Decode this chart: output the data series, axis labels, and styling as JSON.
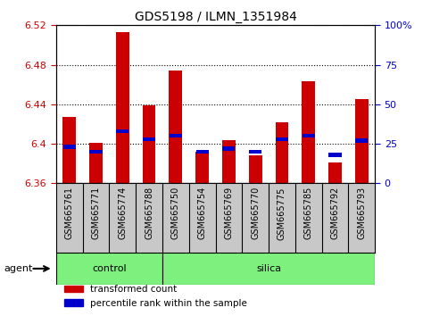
{
  "title": "GDS5198 / ILMN_1351984",
  "samples": [
    "GSM665761",
    "GSM665771",
    "GSM665774",
    "GSM665788",
    "GSM665750",
    "GSM665754",
    "GSM665769",
    "GSM665770",
    "GSM665775",
    "GSM665785",
    "GSM665792",
    "GSM665793"
  ],
  "groups": [
    "control",
    "control",
    "control",
    "control",
    "silica",
    "silica",
    "silica",
    "silica",
    "silica",
    "silica",
    "silica",
    "silica"
  ],
  "transformed_count": [
    6.427,
    6.401,
    6.513,
    6.439,
    6.474,
    6.392,
    6.404,
    6.388,
    6.422,
    6.463,
    6.381,
    6.445
  ],
  "percentile_rank": [
    23,
    20,
    33,
    28,
    30,
    20,
    22,
    20,
    28,
    30,
    18,
    27
  ],
  "ylim_left": [
    6.36,
    6.52
  ],
  "ylim_right": [
    0,
    100
  ],
  "yticks_left": [
    6.36,
    6.4,
    6.44,
    6.48,
    6.52
  ],
  "yticks_right": [
    0,
    25,
    50,
    75,
    100
  ],
  "bar_color": "#cc0000",
  "percentile_color": "#0000cc",
  "group_color": "#7ef07e",
  "tick_area_color": "#c8c8c8",
  "agent_label": "agent",
  "group_labels": [
    "control",
    "silica"
  ],
  "legend_bar": "transformed count",
  "legend_pct": "percentile rank within the sample",
  "n_control": 4,
  "n_silica": 8
}
